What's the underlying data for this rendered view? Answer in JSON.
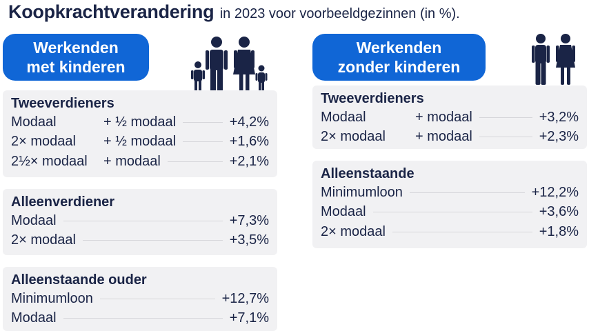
{
  "title": {
    "main": "Koopkrachtverandering",
    "sub": "in 2023 voor voorbeeldgezinnen (in %)."
  },
  "colors": {
    "accent": "#1066d6",
    "text": "#1a2446",
    "card": "#f1f1f3"
  },
  "left": {
    "badge": {
      "line1": "Werkenden",
      "line2": "met kinderen"
    },
    "icon": "family-with-children-icon",
    "groups": [
      {
        "heading": "Tweeverdieners",
        "rows": [
          {
            "earner1": "Modaal",
            "earner2": "+ ½ modaal",
            "value": "+4,2%"
          },
          {
            "earner1": "2× modaal",
            "earner2": "+ ½ modaal",
            "value": "+1,6%"
          },
          {
            "earner1": "2½× modaal",
            "earner2": "+ modaal",
            "value": "+2,1%"
          }
        ]
      },
      {
        "heading": "Alleenverdiener",
        "rows": [
          {
            "earner1": "Modaal",
            "value": "+7,3%"
          },
          {
            "earner1": "2× modaal",
            "value": "+3,5%"
          }
        ]
      },
      {
        "heading": "Alleenstaande ouder",
        "rows": [
          {
            "earner1": "Minimumloon",
            "value": "+12,7%"
          },
          {
            "earner1": "Modaal",
            "value": "+7,1%"
          }
        ]
      }
    ]
  },
  "right": {
    "badge": {
      "line1": "Werkenden",
      "line2": "zonder kinderen"
    },
    "icon": "couple-icon",
    "groups": [
      {
        "heading": "Tweeverdieners",
        "rows": [
          {
            "earner1": "Modaal",
            "earner2": "+ modaal",
            "value": "+3,2%"
          },
          {
            "earner1": "2× modaal",
            "earner2": "+ modaal",
            "value": "+2,3%"
          }
        ]
      },
      {
        "heading": "Alleenstaande",
        "rows": [
          {
            "earner1": "Minimumloon",
            "value": "+12,2%"
          },
          {
            "earner1": "Modaal",
            "value": "+3,6%"
          },
          {
            "earner1": "2× modaal",
            "value": "+1,8%"
          }
        ]
      }
    ]
  }
}
